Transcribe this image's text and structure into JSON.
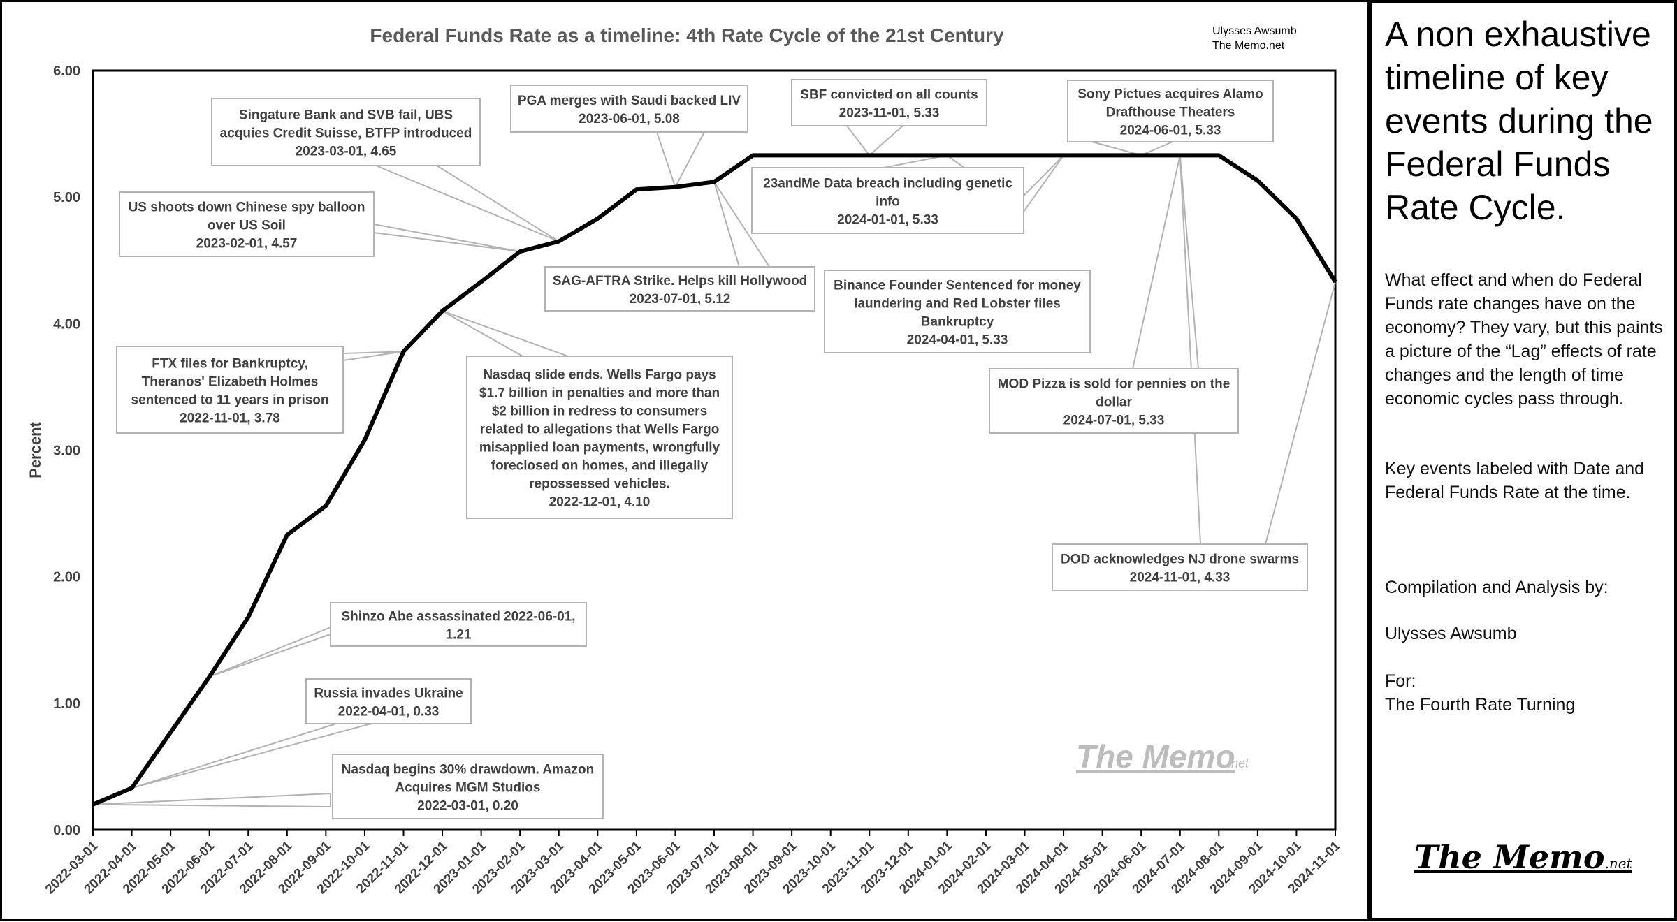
{
  "chart_data": {
    "type": "line",
    "title": "Federal Funds Rate as a timeline: 4th Rate Cycle of the 21st Century",
    "credit": [
      "Ulysses Awsumb",
      "The Memo.net"
    ],
    "ylabel": "Percent",
    "ylim": [
      0,
      6
    ],
    "yticks": [
      "0.00",
      "1.00",
      "2.00",
      "3.00",
      "4.00",
      "5.00",
      "6.00"
    ],
    "grid": false,
    "legend": "none",
    "line_color": "#000000",
    "x": [
      "2022-03-01",
      "2022-04-01",
      "2022-05-01",
      "2022-06-01",
      "2022-07-01",
      "2022-08-01",
      "2022-09-01",
      "2022-10-01",
      "2022-11-01",
      "2022-12-01",
      "2023-01-01",
      "2023-02-01",
      "2023-03-01",
      "2023-04-01",
      "2023-05-01",
      "2023-06-01",
      "2023-07-01",
      "2023-08-01",
      "2023-09-01",
      "2023-10-01",
      "2023-11-01",
      "2023-12-01",
      "2024-01-01",
      "2024-02-01",
      "2024-03-01",
      "2024-04-01",
      "2024-05-01",
      "2024-06-01",
      "2024-07-01",
      "2024-08-01",
      "2024-09-01",
      "2024-10-01",
      "2024-11-01"
    ],
    "values": [
      0.2,
      0.33,
      0.77,
      1.21,
      1.68,
      2.33,
      2.56,
      3.08,
      3.78,
      4.1,
      4.33,
      4.57,
      4.65,
      4.83,
      5.06,
      5.08,
      5.12,
      5.33,
      5.33,
      5.33,
      5.33,
      5.33,
      5.33,
      5.33,
      5.33,
      5.33,
      5.33,
      5.33,
      5.33,
      5.33,
      5.13,
      4.83,
      4.33
    ],
    "annotations": [
      {
        "lines": [
          "Nasdaq begins 30% drawdown. Amazon",
          "Acquires MGM Studios",
          "2022-03-01, 0.20"
        ],
        "points": [
          "2022-03-01"
        ]
      },
      {
        "lines": [
          "Russia invades Ukraine",
          "2022-04-01, 0.33"
        ],
        "points": [
          "2022-04-01"
        ]
      },
      {
        "lines": [
          "Shinzo Abe assassinated 2022-06-01,",
          "1.21"
        ],
        "points": [
          "2022-06-01"
        ]
      },
      {
        "lines": [
          "FTX files for Bankruptcy,",
          "Theranos' Elizabeth Holmes",
          "sentenced to 11 years in prison",
          "2022-11-01, 3.78"
        ],
        "points": [
          "2022-11-01"
        ]
      },
      {
        "lines": [
          "Nasdaq slide ends. Wells Fargo pays",
          "$1.7 billion in  penalties and more than",
          "$2 billion in redress to consumers",
          "related to allegations that Wells Fargo",
          "misapplied loan payments, wrongfully",
          "foreclosed on homes, and illegally",
          "repossessed vehicles.",
          "2022-12-01, 4.10"
        ],
        "points": [
          "2022-12-01"
        ]
      },
      {
        "lines": [
          "US shoots down Chinese spy balloon",
          "over US Soil",
          "2023-02-01, 4.57"
        ],
        "points": [
          "2023-02-01"
        ]
      },
      {
        "lines": [
          "Singature Bank and SVB fail, UBS",
          "acquies Credit Suisse, BTFP introduced",
          "2023-03-01, 4.65"
        ],
        "points": [
          "2023-03-01"
        ]
      },
      {
        "lines": [
          "PGA merges with Saudi backed LIV",
          "2023-06-01, 5.08"
        ],
        "points": [
          "2023-06-01"
        ]
      },
      {
        "lines": [
          "SAG-AFTRA Strike. Helps kill Hollywood",
          "2023-07-01, 5.12"
        ],
        "points": [
          "2023-07-01"
        ]
      },
      {
        "lines": [
          "SBF convicted on all counts",
          "2023-11-01, 5.33"
        ],
        "points": [
          "2023-11-01"
        ]
      },
      {
        "lines": [
          "23andMe Data breach including genetic",
          "info",
          "2024-01-01, 5.33"
        ],
        "points": [
          "2024-01-01"
        ]
      },
      {
        "lines": [
          "Binance Founder Sentenced for money",
          "laundering and Red Lobster files",
          "Bankruptcy",
          "2024-04-01, 5.33"
        ],
        "points": [
          "2024-04-01"
        ]
      },
      {
        "lines": [
          "Sony Pictues acquires Alamo",
          "Drafthouse Theaters",
          "2024-06-01, 5.33"
        ],
        "points": [
          "2024-06-01"
        ]
      },
      {
        "lines": [
          "MOD Pizza is sold for pennies on the",
          "dollar",
          "2024-07-01, 5.33"
        ],
        "points": [
          "2024-07-01"
        ]
      },
      {
        "lines": [
          "DOD acknowledges NJ drone swarms",
          "2024-11-01, 4.33"
        ],
        "points": [
          "2024-07-01",
          "2024-11-01"
        ]
      }
    ],
    "watermark": {
      "main": "The Memo",
      "suffix": ".net"
    }
  },
  "side_panel": {
    "heading": "A non exhaustive timeline of key events during the Federal Funds Rate Cycle.",
    "para1": "What effect and when do Federal Funds rate changes have on the economy? They vary, but this paints a picture of the “Lag” effects of rate changes and the length of time economic cycles pass through.",
    "para2": "Key events labeled with Date and Federal Funds Rate at the time.",
    "para3": "Compilation and Analysis by:",
    "para4": "Ulysses Awsumb",
    "para5a": "For:",
    "para5b": "The Fourth Rate Turning",
    "logo_main": "The Memo",
    "logo_suffix": ".net"
  }
}
